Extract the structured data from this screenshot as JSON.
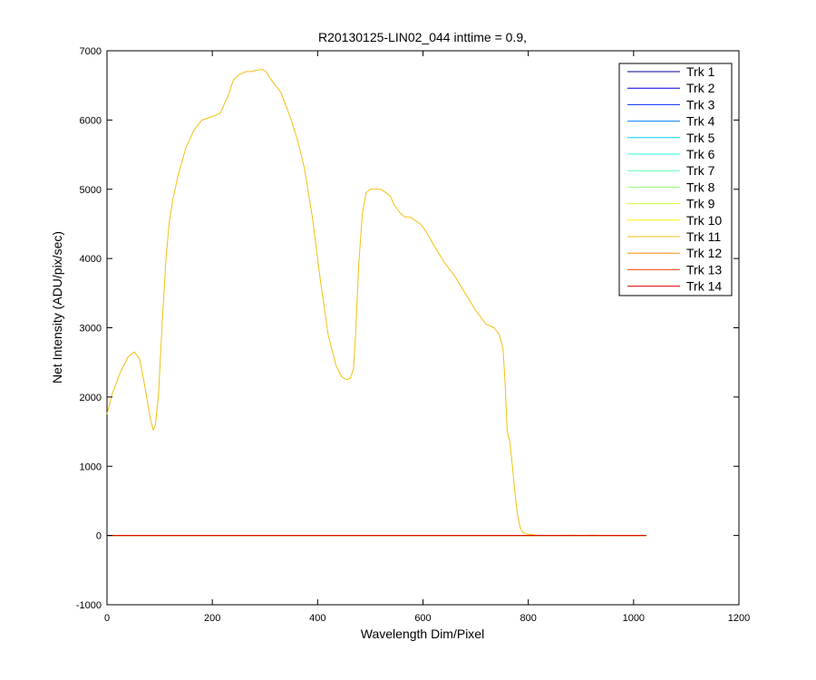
{
  "chart_data": {
    "type": "line",
    "title": "R20130125-LIN02_044 inttime = 0.9,",
    "xlabel": "Wavelength Dim/Pixel",
    "ylabel": "Net Intensity (ADU/pix/sec)",
    "xlim": [
      0,
      1200
    ],
    "ylim": [
      -1000,
      7000
    ],
    "xticks": [
      0,
      200,
      400,
      600,
      800,
      1000,
      1200
    ],
    "yticks": [
      -1000,
      0,
      1000,
      2000,
      3000,
      4000,
      5000,
      6000,
      7000
    ],
    "grid": false,
    "legend_position": "top-right",
    "series": [
      {
        "name": "Trk 1",
        "color": "#00008F",
        "x": [
          0,
          1024
        ],
        "y": [
          0,
          0
        ]
      },
      {
        "name": "Trk 2",
        "color": "#0000DF",
        "x": [
          0,
          1024
        ],
        "y": [
          0,
          0
        ]
      },
      {
        "name": "Trk 3",
        "color": "#0030FF",
        "x": [
          0,
          1024
        ],
        "y": [
          0,
          0
        ]
      },
      {
        "name": "Trk 4",
        "color": "#0080FF",
        "x": [
          0,
          1024
        ],
        "y": [
          0,
          0
        ]
      },
      {
        "name": "Trk 5",
        "color": "#00CFFF",
        "x": [
          0,
          1024
        ],
        "y": [
          0,
          0
        ]
      },
      {
        "name": "Trk 6",
        "color": "#20FFDF",
        "x": [
          0,
          1024
        ],
        "y": [
          0,
          0
        ]
      },
      {
        "name": "Trk 7",
        "color": "#50FFAF",
        "x": [
          0,
          1024
        ],
        "y": [
          0,
          0
        ]
      },
      {
        "name": "Trk 8",
        "color": "#90FF70",
        "x": [
          0,
          1024
        ],
        "y": [
          0,
          0
        ]
      },
      {
        "name": "Trk 9",
        "color": "#CFFF30",
        "x": [
          0,
          1024
        ],
        "y": [
          0,
          0
        ]
      },
      {
        "name": "Trk 10",
        "color": "#FFEF00",
        "x": [
          0,
          1024
        ],
        "y": [
          0,
          0
        ]
      },
      {
        "name": "Trk 11",
        "color": "#F2C010",
        "x": [
          0,
          10,
          25,
          40,
          52,
          62,
          72,
          82,
          88,
          92,
          98,
          105,
          112,
          118,
          125,
          135,
          150,
          165,
          180,
          200,
          215,
          230,
          240,
          250,
          258,
          265,
          275,
          285,
          295,
          302,
          310,
          320,
          330,
          340,
          350,
          362,
          375,
          390,
          405,
          420,
          435,
          445,
          455,
          462,
          468,
          472,
          478,
          485,
          492,
          500,
          510,
          520,
          530,
          538,
          545,
          555,
          565,
          575,
          585,
          595,
          605,
          620,
          640,
          660,
          680,
          700,
          720,
          735,
          745,
          752,
          756,
          760,
          765,
          770,
          775,
          780,
          785,
          790,
          800,
          820,
          850,
          880,
          900,
          920,
          950,
          1000,
          1024
        ],
        "y": [
          1750,
          2050,
          2350,
          2580,
          2650,
          2550,
          2150,
          1700,
          1520,
          1600,
          2050,
          3100,
          4000,
          4500,
          4850,
          5200,
          5600,
          5850,
          6000,
          6050,
          6100,
          6350,
          6580,
          6650,
          6680,
          6700,
          6700,
          6720,
          6730,
          6700,
          6600,
          6500,
          6400,
          6200,
          6000,
          5700,
          5300,
          4600,
          3700,
          2900,
          2450,
          2300,
          2250,
          2270,
          2400,
          2900,
          3900,
          4650,
          4950,
          5000,
          5000,
          5000,
          4950,
          4900,
          4780,
          4670,
          4600,
          4600,
          4550,
          4500,
          4400,
          4200,
          3950,
          3750,
          3500,
          3250,
          3050,
          3000,
          2900,
          2700,
          2200,
          1500,
          1350,
          1000,
          600,
          280,
          100,
          40,
          20,
          0,
          0,
          5,
          0,
          5,
          0,
          0,
          0
        ]
      },
      {
        "name": "Trk 12",
        "color": "#FF9000",
        "x": [
          0,
          1024
        ],
        "y": [
          0,
          0
        ]
      },
      {
        "name": "Trk 13",
        "color": "#FF4000",
        "x": [
          0,
          1024
        ],
        "y": [
          0,
          0
        ]
      },
      {
        "name": "Trk 14",
        "color": "#DF0000",
        "x": [
          0,
          1024
        ],
        "y": [
          0,
          0
        ]
      }
    ]
  }
}
